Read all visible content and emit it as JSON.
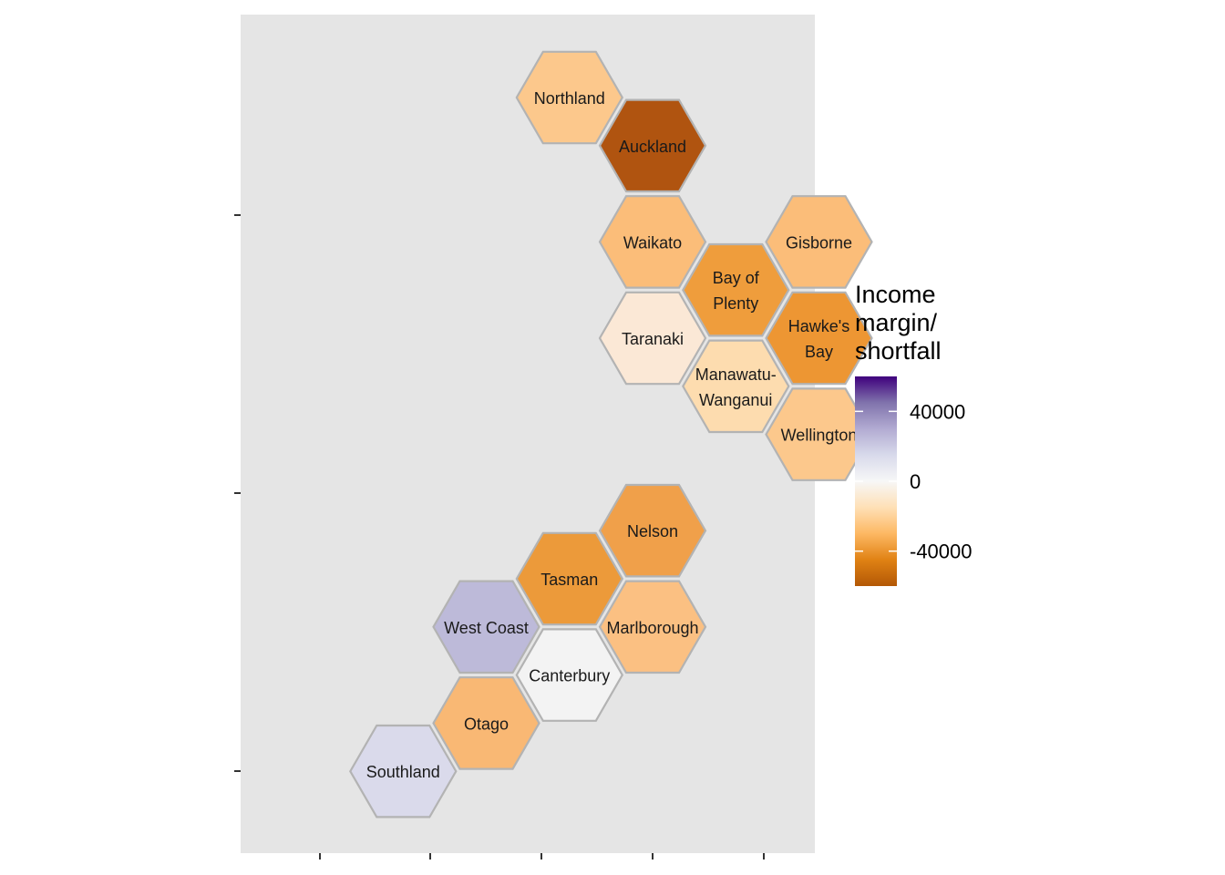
{
  "chart_data": {
    "type": "heatmap",
    "subtype": "hexagon-tile-map",
    "title": "",
    "xlabel": "",
    "ylabel": "",
    "grid": false,
    "background": "#e5e5e5",
    "legend": {
      "title_lines": [
        "Income",
        "margin/",
        "shortfall"
      ],
      "placement": "right",
      "range": [
        -60000,
        60000
      ],
      "ticks": [
        40000,
        0,
        -40000
      ],
      "tick_labels": [
        "40000",
        "0",
        "-40000"
      ],
      "colors_high_to_low": [
        "#3f007d",
        "#8073ac",
        "#b2abd2",
        "#d8daeb",
        "#f7f7f7",
        "#fee0b6",
        "#fdb863",
        "#e08214",
        "#b35806"
      ]
    },
    "regions": [
      {
        "name": "Northland",
        "label_lines": [
          "Northland"
        ],
        "col": 1.5,
        "row": 0,
        "value": -27000,
        "color": "#fcc88c"
      },
      {
        "name": "Auckland",
        "label_lines": [
          "Auckland"
        ],
        "col": 2,
        "row": 1,
        "value": -60000,
        "color": "#b05410"
      },
      {
        "name": "Waikato",
        "label_lines": [
          "Waikato"
        ],
        "col": 2,
        "row": 3,
        "value": -31000,
        "color": "#fbbd79"
      },
      {
        "name": "Gisborne",
        "label_lines": [
          "Gisborne"
        ],
        "col": 3,
        "row": 3,
        "value": -31000,
        "color": "#fbbd79"
      },
      {
        "name": "Bay of Plenty",
        "label_lines": [
          "Bay of",
          "Plenty"
        ],
        "col": 2.5,
        "row": 4,
        "value": -45000,
        "color": "#ef9d3c"
      },
      {
        "name": "Taranaki",
        "label_lines": [
          "Taranaki"
        ],
        "col": 2,
        "row": 5,
        "value": -6000,
        "color": "#fbe8d6"
      },
      {
        "name": "Hawke's Bay",
        "label_lines": [
          "Hawke's",
          "Bay"
        ],
        "col": 3,
        "row": 5,
        "value": -48000,
        "color": "#ed9633"
      },
      {
        "name": "Manawatu-Wanganui",
        "label_lines": [
          "Manawatu-",
          "Wanganui"
        ],
        "col": 2.5,
        "row": 6,
        "value": -18000,
        "color": "#fddcaf"
      },
      {
        "name": "Wellington",
        "label_lines": [
          "Wellington"
        ],
        "col": 3,
        "row": 7,
        "value": -27000,
        "color": "#fcc88c"
      },
      {
        "name": "Nelson",
        "label_lines": [
          "Nelson"
        ],
        "col": 2,
        "row": 9,
        "value": -42000,
        "color": "#f0a04a"
      },
      {
        "name": "Tasman",
        "label_lines": [
          "Tasman"
        ],
        "col": 1.5,
        "row": 10,
        "value": -47000,
        "color": "#ec9a3a"
      },
      {
        "name": "West Coast",
        "label_lines": [
          "West Coast"
        ],
        "col": 1,
        "row": 11,
        "value": 22000,
        "color": "#bdbad9"
      },
      {
        "name": "Marlborough",
        "label_lines": [
          "Marlborough"
        ],
        "col": 2,
        "row": 11,
        "value": -30000,
        "color": "#fbc082"
      },
      {
        "name": "Canterbury",
        "label_lines": [
          "Canterbury"
        ],
        "col": 1.5,
        "row": 12,
        "value": 0,
        "color": "#f3f3f3"
      },
      {
        "name": "Otago",
        "label_lines": [
          "Otago"
        ],
        "col": 1,
        "row": 13,
        "value": -35000,
        "color": "#f9b874"
      },
      {
        "name": "Southland",
        "label_lines": [
          "Southland"
        ],
        "col": 0.5,
        "row": 14,
        "value": 10000,
        "color": "#dadaeb"
      }
    ]
  }
}
